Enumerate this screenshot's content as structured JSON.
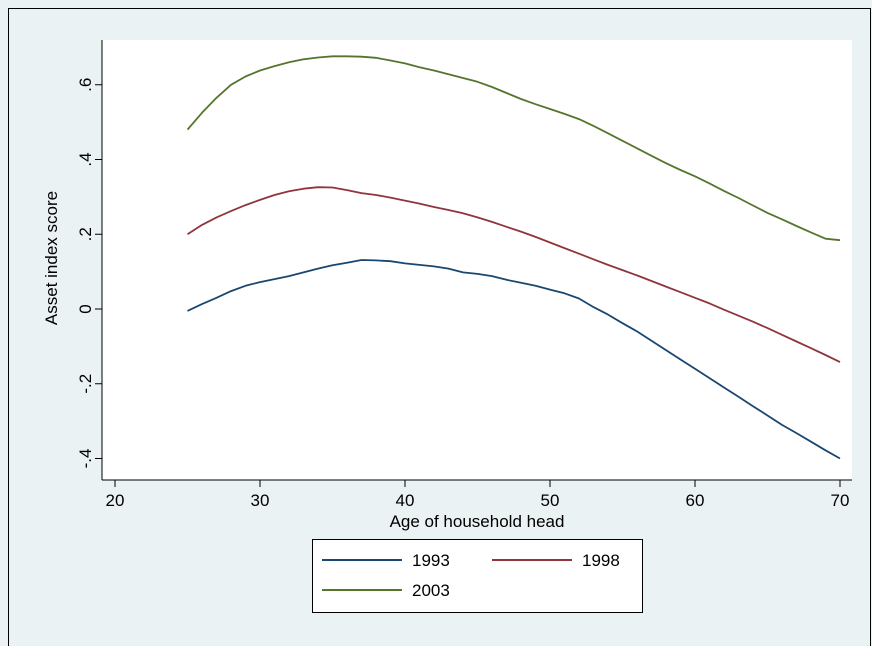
{
  "chart_data": {
    "type": "line",
    "xlabel": "Age of household head",
    "ylabel": "Asset index score",
    "xlim": [
      20,
      70
    ],
    "ylim": [
      -0.4,
      0.7
    ],
    "x_ticks": [
      20,
      30,
      40,
      50,
      60,
      70
    ],
    "x_tick_labels": [
      "20",
      "30",
      "40",
      "50",
      "60",
      "70"
    ],
    "y_ticks": [
      -0.4,
      -0.2,
      0,
      0.2,
      0.4,
      0.6
    ],
    "y_tick_labels": [
      "-.4",
      "-.2",
      "0",
      ".2",
      ".4",
      ".6"
    ],
    "grid": false,
    "legend_position": "bottom",
    "colors": {
      "outer_background": "#eaf2f3",
      "plot_background": "#ffffff",
      "1993": "#1a476f",
      "1998": "#90353b",
      "2003": "#55752f"
    },
    "series": [
      {
        "name": "1993",
        "x": [
          25,
          26,
          27,
          28,
          29,
          30,
          31,
          32,
          33,
          34,
          35,
          36,
          37,
          38,
          39,
          40,
          41,
          42,
          43,
          44,
          45,
          46,
          47,
          48,
          49,
          50,
          51,
          52,
          53,
          54,
          55,
          56,
          57,
          58,
          59,
          60,
          61,
          62,
          63,
          64,
          65,
          66,
          67,
          68,
          69,
          70
        ],
        "values": [
          -0.005,
          0.013,
          0.03,
          0.048,
          0.062,
          0.072,
          0.08,
          0.088,
          0.098,
          0.108,
          0.117,
          0.124,
          0.131,
          0.13,
          0.128,
          0.122,
          0.118,
          0.114,
          0.108,
          0.098,
          0.094,
          0.088,
          0.078,
          0.07,
          0.062,
          0.052,
          0.042,
          0.028,
          0.005,
          -0.015,
          -0.038,
          -0.06,
          -0.085,
          -0.11,
          -0.135,
          -0.16,
          -0.185,
          -0.21,
          -0.235,
          -0.26,
          -0.285,
          -0.31,
          -0.332,
          -0.355,
          -0.378,
          -0.4
        ]
      },
      {
        "name": "1998",
        "x": [
          25,
          26,
          27,
          28,
          29,
          30,
          31,
          32,
          33,
          34,
          35,
          36,
          37,
          38,
          39,
          40,
          41,
          42,
          43,
          44,
          45,
          46,
          47,
          48,
          49,
          50,
          51,
          52,
          53,
          54,
          55,
          56,
          57,
          58,
          59,
          60,
          61,
          62,
          63,
          64,
          65,
          66,
          67,
          68,
          69,
          70
        ],
        "values": [
          0.2,
          0.225,
          0.245,
          0.262,
          0.278,
          0.292,
          0.305,
          0.315,
          0.322,
          0.326,
          0.325,
          0.318,
          0.31,
          0.305,
          0.298,
          0.29,
          0.282,
          0.273,
          0.265,
          0.256,
          0.245,
          0.233,
          0.22,
          0.207,
          0.193,
          0.178,
          0.163,
          0.148,
          0.133,
          0.118,
          0.104,
          0.09,
          0.075,
          0.06,
          0.045,
          0.03,
          0.015,
          -0.002,
          -0.018,
          -0.034,
          -0.051,
          -0.069,
          -0.087,
          -0.105,
          -0.123,
          -0.142
        ]
      },
      {
        "name": "2003",
        "x": [
          25,
          26,
          27,
          28,
          29,
          30,
          31,
          32,
          33,
          34,
          35,
          36,
          37,
          38,
          39,
          40,
          41,
          42,
          43,
          44,
          45,
          46,
          47,
          48,
          49,
          50,
          51,
          52,
          53,
          54,
          55,
          56,
          57,
          58,
          59,
          60,
          61,
          62,
          63,
          64,
          65,
          66,
          67,
          68,
          69,
          70
        ],
        "values": [
          0.48,
          0.525,
          0.565,
          0.6,
          0.622,
          0.638,
          0.65,
          0.66,
          0.668,
          0.673,
          0.676,
          0.676,
          0.675,
          0.672,
          0.665,
          0.657,
          0.647,
          0.638,
          0.628,
          0.618,
          0.608,
          0.594,
          0.578,
          0.562,
          0.548,
          0.535,
          0.522,
          0.508,
          0.49,
          0.47,
          0.45,
          0.43,
          0.41,
          0.39,
          0.372,
          0.355,
          0.336,
          0.316,
          0.297,
          0.277,
          0.257,
          0.24,
          0.222,
          0.205,
          0.188,
          0.184
        ]
      }
    ],
    "legend": [
      {
        "label": "1993",
        "series": "1993"
      },
      {
        "label": "1998",
        "series": "1998"
      },
      {
        "label": "2003",
        "series": "2003"
      }
    ]
  }
}
